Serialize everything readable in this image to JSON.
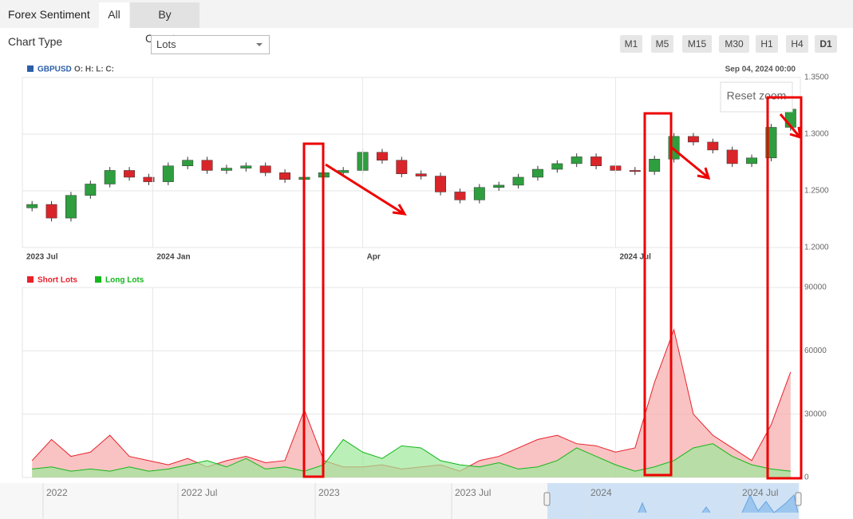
{
  "header": {
    "title": "Forex Sentiment",
    "tabs": [
      "All",
      "By Country"
    ]
  },
  "controls": {
    "chart_type_label": "Chart Type",
    "chart_type_value": "Lots",
    "timeframes": [
      "M1",
      "M5",
      "M15",
      "M30",
      "H1",
      "H4",
      "D1"
    ],
    "reset_zoom": "Reset zoom"
  },
  "navigator": {
    "labels": [
      "2022",
      "2022 Jul",
      "2023",
      "2023 Jul",
      "2024",
      "2024 Jul"
    ]
  },
  "chart_data": [
    {
      "type": "candlestick",
      "name": "GBPUSD",
      "ohlc_label": "O: H: L: C:",
      "date_label": "Sep 04, 2024 00:00",
      "up_color": "#2e9e3e",
      "down_color": "#d9252a",
      "grid": true,
      "xlim": [
        -0.5,
        39.5
      ],
      "xticks": [
        {
          "value": -0.5,
          "label": "2023 Jul"
        },
        {
          "value": 6.2,
          "label": "2024 Jan"
        },
        {
          "value": 17,
          "label": "Apr"
        },
        {
          "value": 30,
          "label": "2024 Jul"
        }
      ],
      "ylim": [
        1.2,
        1.35
      ],
      "yticks": [
        {
          "value": 1.2,
          "label": "1.2000"
        },
        {
          "value": 1.25,
          "label": "1.2500"
        },
        {
          "value": 1.3,
          "label": "1.3000"
        },
        {
          "value": 1.35,
          "label": "1.3500"
        }
      ],
      "open": [
        1.235,
        1.238,
        1.226,
        1.246,
        1.256,
        1.268,
        1.262,
        1.258,
        1.272,
        1.277,
        1.268,
        1.27,
        1.272,
        1.266,
        1.26,
        1.262,
        1.266,
        1.268,
        1.284,
        1.277,
        1.265,
        1.263,
        1.249,
        1.242,
        1.253,
        1.255,
        1.262,
        1.269,
        1.274,
        1.28,
        1.272,
        1.268,
        1.267,
        1.278,
        1.298,
        1.293,
        1.286,
        1.274,
        1.279,
        1.306
      ],
      "high": [
        1.241,
        1.241,
        1.249,
        1.259,
        1.271,
        1.271,
        1.265,
        1.275,
        1.28,
        1.28,
        1.273,
        1.275,
        1.275,
        1.269,
        1.265,
        1.269,
        1.271,
        1.287,
        1.287,
        1.28,
        1.268,
        1.266,
        1.252,
        1.256,
        1.258,
        1.265,
        1.272,
        1.277,
        1.283,
        1.283,
        1.275,
        1.271,
        1.281,
        1.301,
        1.301,
        1.296,
        1.289,
        1.282,
        1.309,
        1.325
      ],
      "low": [
        1.232,
        1.223,
        1.223,
        1.243,
        1.253,
        1.259,
        1.255,
        1.255,
        1.269,
        1.265,
        1.265,
        1.267,
        1.263,
        1.257,
        1.257,
        1.259,
        1.263,
        1.265,
        1.274,
        1.262,
        1.26,
        1.246,
        1.239,
        1.239,
        1.25,
        1.252,
        1.259,
        1.266,
        1.271,
        1.269,
        1.265,
        1.264,
        1.264,
        1.275,
        1.29,
        1.283,
        1.271,
        1.271,
        1.276,
        1.303
      ],
      "close": [
        1.238,
        1.226,
        1.246,
        1.256,
        1.268,
        1.262,
        1.258,
        1.272,
        1.277,
        1.268,
        1.27,
        1.272,
        1.266,
        1.26,
        1.262,
        1.266,
        1.268,
        1.284,
        1.277,
        1.265,
        1.263,
        1.249,
        1.242,
        1.253,
        1.255,
        1.262,
        1.269,
        1.274,
        1.28,
        1.272,
        1.268,
        1.267,
        1.278,
        1.298,
        1.293,
        1.286,
        1.274,
        1.279,
        1.306,
        1.322
      ]
    },
    {
      "type": "area",
      "grid": true,
      "ylim": [
        0,
        90000
      ],
      "yticks": [
        0,
        30000,
        60000,
        90000
      ],
      "series": [
        {
          "name": "Short Lots",
          "color": "#e8212b",
          "fill": "#f7a9a9",
          "values": [
            8000,
            18000,
            10000,
            12000,
            20000,
            10000,
            8000,
            6000,
            9000,
            5000,
            8000,
            10000,
            7000,
            8000,
            32000,
            8000,
            5000,
            5000,
            6000,
            4000,
            5000,
            6000,
            3000,
            8000,
            10000,
            14000,
            18000,
            20000,
            16000,
            15000,
            12000,
            14000,
            45000,
            70000,
            30000,
            20000,
            14000,
            8000,
            25000,
            50000
          ]
        },
        {
          "name": "Long Lots",
          "color": "#13b71a",
          "fill": "#9ee89a",
          "values": [
            4000,
            5000,
            3000,
            4000,
            3000,
            5000,
            3000,
            4000,
            6000,
            8000,
            5000,
            9000,
            4000,
            5000,
            3000,
            6000,
            18000,
            12000,
            9000,
            15000,
            14000,
            8000,
            6000,
            5000,
            7000,
            4000,
            5000,
            8000,
            14000,
            10000,
            6000,
            3000,
            5000,
            8000,
            14000,
            16000,
            10000,
            6000,
            4000,
            3000
          ]
        }
      ]
    }
  ]
}
